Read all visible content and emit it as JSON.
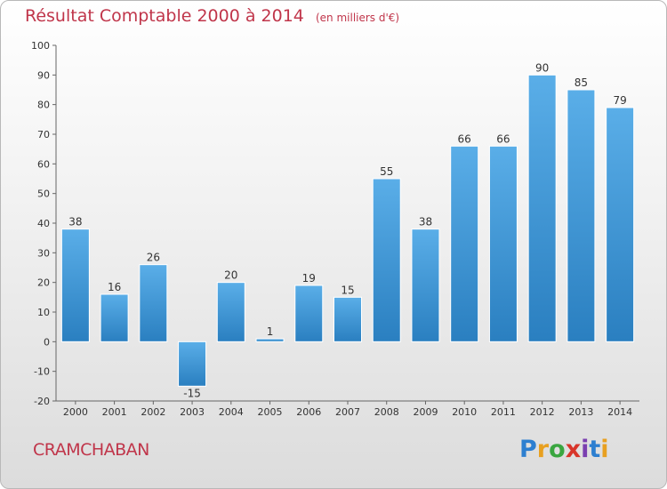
{
  "header": {
    "title": "Résultat Comptable 2000 à 2014",
    "subtitle": "(en milliers d'€)"
  },
  "footer": {
    "commune": "CRAMCHABAN",
    "logo_text": "Proxiti"
  },
  "colors": {
    "title": "#c0354a",
    "bar_top": "#5aaee8",
    "bar_bottom": "#2a7fc0",
    "bar_stroke": "#ffffff"
  },
  "chart_data": {
    "type": "bar",
    "categories": [
      "2000",
      "2001",
      "2002",
      "2003",
      "2004",
      "2005",
      "2006",
      "2007",
      "2008",
      "2009",
      "2010",
      "2011",
      "2012",
      "2013",
      "2014"
    ],
    "values": [
      38,
      16,
      26,
      -15,
      20,
      1,
      19,
      15,
      55,
      38,
      66,
      66,
      90,
      85,
      79
    ],
    "title": "Résultat Comptable 2000 à 2014",
    "subtitle": "(en milliers d'€)",
    "xlabel": "",
    "ylabel": "",
    "ylim": [
      -20,
      100
    ],
    "yticks": [
      -20,
      -10,
      0,
      10,
      20,
      30,
      40,
      50,
      60,
      70,
      80,
      90,
      100
    ],
    "grid": false,
    "legend": "none"
  }
}
